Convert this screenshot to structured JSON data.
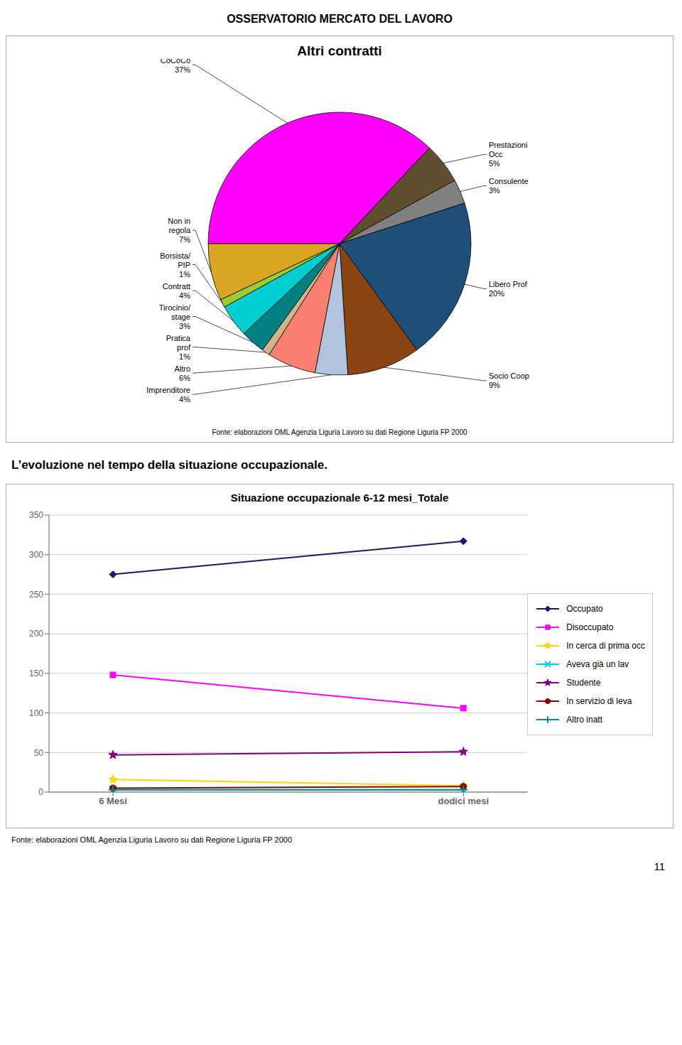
{
  "chart_data": [
    {
      "type": "pie",
      "title": "Altri contratti",
      "categories": [
        "CoCoCo",
        "Prestazioni\nOcc",
        "Consulente",
        "Libero Prof",
        "Socio Coop",
        "Imprenditore",
        "Altro",
        "Pratica\nprof",
        "Tirocinio/\nstage",
        "Contratt",
        "Borsista/\nPIP",
        "Non in\nregola"
      ],
      "values": [
        37,
        5,
        3,
        20,
        9,
        4,
        6,
        1,
        3,
        4,
        1,
        7
      ],
      "value_labels": [
        "37%",
        "5%",
        "3%",
        "20%",
        "9%",
        "4%",
        "6%",
        "1%",
        "3%",
        "4%",
        "1%",
        "7%"
      ],
      "colors": [
        "#FF00FF",
        "#5F4F2F",
        "#808080",
        "#1F4E79",
        "#8B4513",
        "#B0C4DE",
        "#FA8072",
        "#D2B48C",
        "#008080",
        "#00CED1",
        "#9ACD32",
        "#DAA520"
      ],
      "annotations": [
        "OSSERVATORIO MERCATO DEL LAVORO",
        "Fonte: elaborazioni OML Agenzia Liguria Lavoro su dati Regione Liguria FP 2000"
      ]
    },
    {
      "type": "line",
      "title": "Situazione occupazionale 6-12 mesi_Totale",
      "categories": [
        "6 Mesi",
        "dodici mesi"
      ],
      "series": [
        {
          "name": "Occupato",
          "color": "#191970",
          "marker": "diamond",
          "values": [
            275,
            317
          ]
        },
        {
          "name": "Disoccupato",
          "color": "#FF00FF",
          "marker": "square",
          "values": [
            148,
            106
          ]
        },
        {
          "name": "In cerca di prima occ",
          "color": "#FFD700",
          "marker": "star",
          "values": [
            16,
            8
          ]
        },
        {
          "name": "Aveva già un lav",
          "color": "#00CED1",
          "marker": "x",
          "values": [
            3,
            3
          ]
        },
        {
          "name": "Studente",
          "color": "#800080",
          "marker": "star",
          "values": [
            47,
            51
          ]
        },
        {
          "name": "In servizio di leva",
          "color": "#8B0000",
          "marker": "circle",
          "values": [
            5,
            7
          ]
        },
        {
          "name": "Altro inatt",
          "color": "#008B8B",
          "marker": "plus",
          "values": [
            3,
            3
          ]
        }
      ],
      "ylim": [
        0,
        350
      ],
      "yticks": [
        0,
        50,
        100,
        150,
        200,
        250,
        300,
        350
      ],
      "grid": true,
      "legend": "right",
      "annotations": [
        "L’evoluzione nel tempo della situazione occupazionale.",
        "Fonte: elaborazioni OML Agenzia Liguria Lavoro su dati Regione Liguria FP 2000",
        "11"
      ]
    }
  ]
}
